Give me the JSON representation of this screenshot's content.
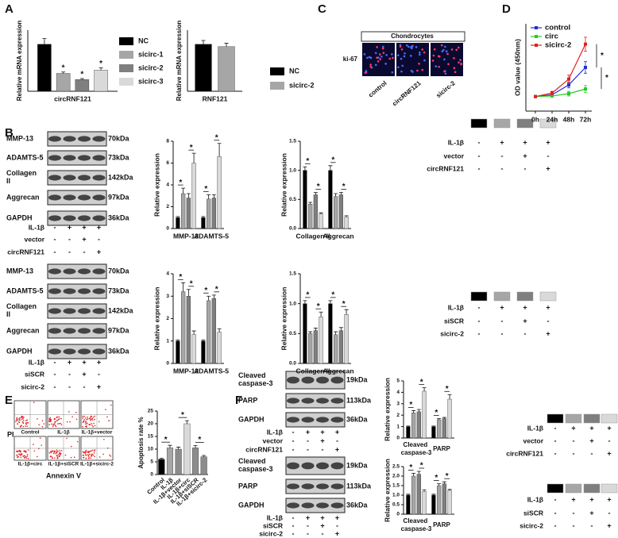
{
  "panels": [
    "A",
    "B",
    "C",
    "D",
    "E",
    "F"
  ],
  "image_panel": {
    "title": "Chondrocytes",
    "row_label": "ki-67",
    "columns": [
      "control",
      "circRNF121",
      "sicirc-2"
    ]
  },
  "flow_panel": {
    "y_label": "PI",
    "x_label": "Annexin V",
    "samples": [
      "Control",
      "IL-1β",
      "IL-1β+vector",
      "IL-1β+circ",
      "IL-1β+siSCR",
      "IL-1β+sicirc-2"
    ]
  },
  "blots": [
    {
      "rows": [
        {
          "label": "MMP-13",
          "kda": "70kDa"
        },
        {
          "label": "ADAMTS-5",
          "kda": "73kDa"
        },
        {
          "label": "Collagen II",
          "kda": "142kDa"
        },
        {
          "label": "Aggrecan",
          "kda": "97kDa"
        },
        {
          "label": "GAPDH",
          "kda": "36kDa"
        }
      ],
      "conditions": [
        {
          "label": "IL-1β",
          "signs": [
            "-",
            "+",
            "+",
            "+"
          ]
        },
        {
          "label": "vector",
          "signs": [
            "-",
            "-",
            "+",
            "-"
          ]
        },
        {
          "label": "circRNF121",
          "signs": [
            "-",
            "-",
            "-",
            "+"
          ]
        }
      ]
    },
    {
      "rows": [
        {
          "label": "MMP-13",
          "kda": "70kDa"
        },
        {
          "label": "ADAMTS-5",
          "kda": "73kDa"
        },
        {
          "label": "Collagen II",
          "kda": "142kDa"
        },
        {
          "label": "Aggrecan",
          "kda": "97kDa"
        },
        {
          "label": "GAPDH",
          "kda": "36kDa"
        }
      ],
      "conditions": [
        {
          "label": "IL-1β",
          "signs": [
            "-",
            "+",
            "+",
            "+"
          ]
        },
        {
          "label": "siSCR",
          "signs": [
            "-",
            "-",
            "+",
            "-"
          ]
        },
        {
          "label": "sicirc-2",
          "signs": [
            "-",
            "-",
            "-",
            "+"
          ]
        }
      ]
    },
    {
      "rows": [
        {
          "label": "Cleaved caspase-3",
          "kda": "19kDa"
        },
        {
          "label": "PARP",
          "kda": "113kDa"
        },
        {
          "label": "GAPDH",
          "kda": "36kDa"
        }
      ],
      "conditions": [
        {
          "label": "IL-1β",
          "signs": [
            "-",
            "+",
            "+",
            "+"
          ]
        },
        {
          "label": "vector",
          "signs": [
            "-",
            "-",
            "+",
            "-"
          ]
        },
        {
          "label": "circRNF121",
          "signs": [
            "-",
            "-",
            "-",
            "+"
          ]
        }
      ]
    },
    {
      "rows": [
        {
          "label": "Cleaved caspase-3",
          "kda": "19kDa"
        },
        {
          "label": "PARP",
          "kda": "113kDa"
        },
        {
          "label": "GAPDH",
          "kda": "36kDa"
        }
      ],
      "conditions": [
        {
          "label": "IL-1β",
          "signs": [
            "-",
            "+",
            "+",
            "+"
          ]
        },
        {
          "label": "siSCR",
          "signs": [
            "-",
            "-",
            "+",
            "-"
          ]
        },
        {
          "label": "sicirc-2",
          "signs": [
            "-",
            "-",
            "-",
            "+"
          ]
        }
      ]
    }
  ],
  "legends": [
    {
      "conditions": [
        {
          "label": "IL-1β",
          "signs": [
            "-",
            "+",
            "+",
            "+"
          ]
        },
        {
          "label": "vector",
          "signs": [
            "-",
            "-",
            "+",
            "-"
          ]
        },
        {
          "label": "circRNF121",
          "signs": [
            "-",
            "-",
            "-",
            "+"
          ]
        }
      ]
    },
    {
      "conditions": [
        {
          "label": "IL-1β",
          "signs": [
            "-",
            "+",
            "+",
            "+"
          ]
        },
        {
          "label": "siSCR",
          "signs": [
            "-",
            "-",
            "+",
            "-"
          ]
        },
        {
          "label": "sicirc-2",
          "signs": [
            "-",
            "-",
            "-",
            "+"
          ]
        }
      ]
    },
    {
      "conditions": [
        {
          "label": "IL-1β",
          "signs": [
            "-",
            "+",
            "+",
            "+"
          ]
        },
        {
          "label": "vector",
          "signs": [
            "-",
            "-",
            "+",
            "-"
          ]
        },
        {
          "label": "circRNF121",
          "signs": [
            "-",
            "-",
            "-",
            "+"
          ]
        }
      ]
    },
    {
      "conditions": [
        {
          "label": "IL-1β",
          "signs": [
            "-",
            "+",
            "+",
            "+"
          ]
        },
        {
          "label": "siSCR",
          "signs": [
            "-",
            "-",
            "+",
            "-"
          ]
        },
        {
          "label": "sicirc-2",
          "signs": [
            "-",
            "-",
            "-",
            "+"
          ]
        }
      ]
    }
  ],
  "chart_data": [
    {
      "type": "bar",
      "ylabel": "Relative mRNA expression",
      "categories": [
        "circRNF121"
      ],
      "ylim": [
        0,
        1.3
      ],
      "legend": "right",
      "brackets": false,
      "series": [
        {
          "name": "NC",
          "color": "#000000",
          "values": [
            1.0
          ],
          "errors": [
            0.12
          ],
          "significance": [
            null
          ]
        },
        {
          "name": "sicirc-1",
          "color": "#a6a6a6",
          "values": [
            0.38
          ],
          "errors": [
            0.03
          ],
          "significance": [
            "*"
          ]
        },
        {
          "name": "sicirc-2",
          "color": "#7f7f7f",
          "values": [
            0.25
          ],
          "errors": [
            0.02
          ],
          "significance": [
            "*"
          ]
        },
        {
          "name": "sicirc-3",
          "color": "#d9d9d9",
          "values": [
            0.45
          ],
          "errors": [
            0.05
          ],
          "significance": [
            "*"
          ]
        }
      ]
    },
    {
      "type": "bar",
      "ylabel": "Relative mRNA expression",
      "categories": [
        "RNF121"
      ],
      "ylim": [
        0,
        1.3
      ],
      "legend": "right",
      "brackets": false,
      "series": [
        {
          "name": "NC",
          "color": "#000000",
          "values": [
            1.0
          ],
          "errors": [
            0.08
          ],
          "significance": [
            null
          ]
        },
        {
          "name": "sicirc-2",
          "color": "#a6a6a6",
          "values": [
            0.95
          ],
          "errors": [
            0.07
          ],
          "significance": [
            null
          ]
        }
      ]
    },
    {
      "type": "line",
      "ylabel": "OD value (450nm)",
      "x": [
        "0h",
        "24h",
        "48h",
        "72h"
      ],
      "ylim": [
        0,
        1.5
      ],
      "legend": "upper left",
      "annotations": [
        "*",
        "*"
      ],
      "series": [
        {
          "name": "control",
          "color": "#1f2fd1",
          "values": [
            0.25,
            0.28,
            0.45,
            0.75
          ],
          "errors": [
            0.01,
            0.03,
            0.05,
            0.1
          ]
        },
        {
          "name": "circ",
          "color": "#22cc22",
          "values": [
            0.25,
            0.26,
            0.3,
            0.38
          ],
          "errors": [
            0.01,
            0.02,
            0.04,
            0.06
          ]
        },
        {
          "name": "sicirc-2",
          "color": "#e02020",
          "values": [
            0.25,
            0.31,
            0.55,
            1.15
          ],
          "errors": [
            0.01,
            0.03,
            0.07,
            0.12
          ]
        }
      ]
    },
    {
      "type": "bar",
      "ylabel": "Relative expression",
      "categories": [
        "MMP-13",
        "ADAMTS-5"
      ],
      "ylim": [
        0,
        8
      ],
      "yticks": [
        0,
        2,
        4,
        6,
        8
      ],
      "brackets": true,
      "series": [
        {
          "color": "#000000",
          "values": [
            1,
            1
          ],
          "errors": [
            0.1,
            0.1
          ],
          "significance": [
            null,
            null
          ]
        },
        {
          "color": "#a6a6a6",
          "values": [
            3.2,
            2.7
          ],
          "errors": [
            0.5,
            0.4
          ],
          "significance": [
            "*",
            "*"
          ]
        },
        {
          "color": "#7f7f7f",
          "values": [
            2.8,
            2.8
          ],
          "errors": [
            0.4,
            0.3
          ],
          "significance": [
            null,
            null
          ]
        },
        {
          "color": "#d9d9d9",
          "values": [
            6.0,
            6.6
          ],
          "errors": [
            0.9,
            1.2
          ],
          "significance": [
            "*",
            "*"
          ]
        }
      ]
    },
    {
      "type": "bar",
      "ylabel": "Relative expression",
      "categories": [
        "Collagen II",
        "Aggrecan"
      ],
      "ylim": [
        0,
        1.5
      ],
      "yticks": [
        {
          "value": 0,
          "label": "0.0"
        },
        0.5,
        {
          "value": 1,
          "label": "1.0"
        },
        1.5
      ],
      "brackets": true,
      "series": [
        {
          "color": "#000000",
          "values": [
            1.0,
            1.0
          ],
          "errors": [
            0.06,
            0.08
          ],
          "significance": [
            null,
            null
          ]
        },
        {
          "color": "#a6a6a6",
          "values": [
            0.42,
            0.55
          ],
          "errors": [
            0.03,
            0.05
          ],
          "significance": [
            "*",
            "*"
          ]
        },
        {
          "color": "#7f7f7f",
          "values": [
            0.58,
            0.58
          ],
          "errors": [
            0.04,
            0.04
          ],
          "significance": [
            null,
            null
          ]
        },
        {
          "color": "#d9d9d9",
          "values": [
            0.25,
            0.2
          ],
          "errors": [
            0.02,
            0.02
          ],
          "significance": [
            "*",
            "*"
          ]
        }
      ]
    },
    {
      "type": "bar",
      "ylabel": "Relative expression",
      "categories": [
        "MMP-13",
        "ADAMTS-5"
      ],
      "ylim": [
        0,
        4
      ],
      "yticks": [
        0,
        1,
        2,
        3,
        4
      ],
      "brackets": true,
      "series": [
        {
          "color": "#000000",
          "values": [
            1,
            1
          ],
          "errors": [
            0.05,
            0.05
          ],
          "significance": [
            null,
            null
          ]
        },
        {
          "color": "#a6a6a6",
          "values": [
            3.2,
            2.8
          ],
          "errors": [
            0.4,
            0.2
          ],
          "significance": [
            "*",
            "*"
          ]
        },
        {
          "color": "#7f7f7f",
          "values": [
            3.0,
            2.9
          ],
          "errors": [
            0.3,
            0.15
          ],
          "significance": [
            null,
            null
          ]
        },
        {
          "color": "#d9d9d9",
          "values": [
            1.3,
            1.4
          ],
          "errors": [
            0.15,
            0.15
          ],
          "significance": [
            "*",
            "*"
          ]
        }
      ]
    },
    {
      "type": "bar",
      "ylabel": "Relative expression",
      "categories": [
        "Collagen II",
        "Aggrecan"
      ],
      "ylim": [
        0,
        1.5
      ],
      "yticks": [
        {
          "value": 0,
          "label": "0.0"
        },
        0.5,
        {
          "value": 1,
          "label": "1.0"
        },
        1.5
      ],
      "brackets": true,
      "series": [
        {
          "color": "#000000",
          "values": [
            1.0,
            1.0
          ],
          "errors": [
            0.05,
            0.05
          ],
          "significance": [
            null,
            null
          ]
        },
        {
          "color": "#a6a6a6",
          "values": [
            0.5,
            0.48
          ],
          "errors": [
            0.03,
            0.05
          ],
          "significance": [
            "*",
            "*"
          ]
        },
        {
          "color": "#7f7f7f",
          "values": [
            0.55,
            0.55
          ],
          "errors": [
            0.04,
            0.05
          ],
          "significance": [
            null,
            null
          ]
        },
        {
          "color": "#d9d9d9",
          "values": [
            0.78,
            0.82
          ],
          "errors": [
            0.08,
            0.08
          ],
          "significance": [
            "*",
            "*"
          ]
        }
      ]
    },
    {
      "type": "bar",
      "ylabel": "Apoptosis rate %",
      "categories": [
        "Control",
        "IL-1β",
        "IL-1β+vector",
        "IL-1β+circ",
        "IL-1β+siSCR",
        "IL-1β+sicirc-2"
      ],
      "ylim": [
        0,
        25
      ],
      "yticks": [
        0,
        5,
        10,
        15,
        20,
        25
      ],
      "brackets": true,
      "values": [
        6,
        10.5,
        10,
        20,
        10.5,
        7
      ],
      "errors": [
        0.4,
        1,
        0.8,
        1.2,
        0.9,
        0.5
      ],
      "colors": [
        "#000000",
        "#a6a6a6",
        "#8c8c8c",
        "#d9d9d9",
        "#8c8c8c",
        "#8c8c8c"
      ],
      "significance": [
        null,
        "*",
        null,
        "*",
        null,
        "*"
      ]
    },
    {
      "type": "bar",
      "ylabel": "Relative expression",
      "categories": [
        "Cleaved caspase-3",
        "PARP"
      ],
      "ylim": [
        0,
        5
      ],
      "yticks": [
        0,
        1,
        2,
        3,
        4,
        5
      ],
      "brackets": true,
      "series": [
        {
          "color": "#000000",
          "values": [
            1,
            1
          ],
          "errors": [
            0.05,
            0.05
          ],
          "significance": [
            null,
            null
          ]
        },
        {
          "color": "#a6a6a6",
          "values": [
            2.2,
            1.6
          ],
          "errors": [
            0.2,
            0.1
          ],
          "significance": [
            "*",
            "*"
          ]
        },
        {
          "color": "#7f7f7f",
          "values": [
            2.3,
            1.7
          ],
          "errors": [
            0.2,
            0.1
          ],
          "significance": [
            null,
            null
          ]
        },
        {
          "color": "#d9d9d9",
          "values": [
            4.1,
            3.4
          ],
          "errors": [
            0.3,
            0.4
          ],
          "significance": [
            "*",
            "*"
          ]
        }
      ]
    },
    {
      "type": "bar",
      "ylabel": "Relative expression",
      "categories": [
        "Cleaved caspase-3",
        "PARP"
      ],
      "ylim": [
        0,
        2.5
      ],
      "yticks": [
        0,
        0.5,
        {
          "value": 1,
          "label": "1.0"
        },
        1.5,
        {
          "value": 2,
          "label": "2.0"
        },
        2.5
      ],
      "brackets": true,
      "series": [
        {
          "color": "#000000",
          "values": [
            1,
            1
          ],
          "errors": [
            0.05,
            0.05
          ],
          "significance": [
            null,
            null
          ]
        },
        {
          "color": "#a6a6a6",
          "values": [
            2.0,
            1.5
          ],
          "errors": [
            0.15,
            0.1
          ],
          "significance": [
            "*",
            "*"
          ]
        },
        {
          "color": "#7f7f7f",
          "values": [
            2.1,
            1.6
          ],
          "errors": [
            0.15,
            0.1
          ],
          "significance": [
            null,
            null
          ]
        },
        {
          "color": "#d9d9d9",
          "values": [
            1.2,
            1.25
          ],
          "errors": [
            0.08,
            0.05
          ],
          "significance": [
            "*",
            "*"
          ]
        }
      ]
    }
  ]
}
